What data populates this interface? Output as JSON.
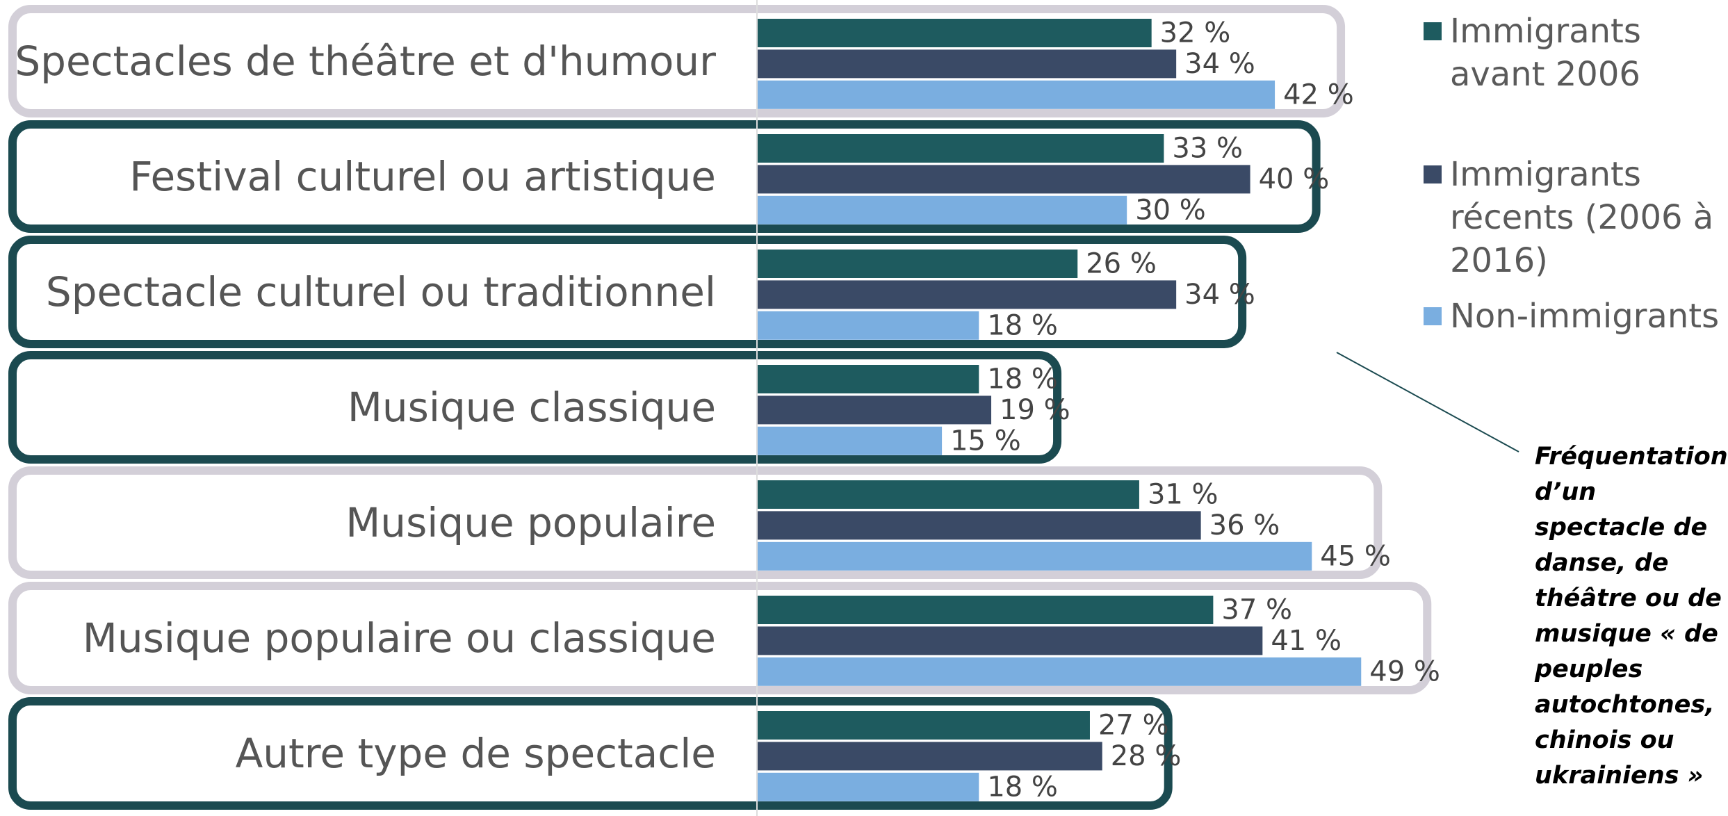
{
  "chart_data": {
    "type": "grouped-horizontal-bar",
    "categories": [
      "Spectacles de théâtre et d'humour",
      "Festival culturel ou artistique",
      "Spectacle culturel ou traditionnel",
      "Musique classique",
      "Musique populaire",
      "Musique populaire ou classique",
      "Autre type de spectacle"
    ],
    "category_box_colors": [
      "#d3cfd8",
      "#1b4a50",
      "#1b4a50",
      "#1b4a50",
      "#d3cfd8",
      "#d3cfd8",
      "#1b4a50"
    ],
    "series": [
      {
        "name": "Immigrants avant 2006",
        "color": "#1e5b5f",
        "values": [
          32,
          33,
          26,
          18,
          31,
          37,
          27
        ],
        "value_labels": [
          "32 %",
          "33 %",
          "26 %",
          "18 %",
          "31 %",
          "37 %",
          "27 %"
        ]
      },
      {
        "name": "Immigrants récents (2006 à 2016)",
        "color": "#3a4a66",
        "values": [
          34,
          40,
          34,
          19,
          36,
          41,
          28
        ],
        "value_labels": [
          "34 %",
          "40 %",
          "34 %",
          "19 %",
          "36 %",
          "41 %",
          "28 %"
        ]
      },
      {
        "name": "Non-immigrants",
        "color": "#7aaee0",
        "values": [
          42,
          30,
          18,
          15,
          45,
          49,
          18
        ],
        "value_labels": [
          "42 %",
          "30 %",
          "18 %",
          "15 %",
          "45 %",
          "49 %",
          "18 %"
        ]
      }
    ],
    "annotation": "Fréquentation d’un spectacle de danse, de théâtre ou de musique « de peuples autochtones, chinois ou ukrainiens »"
  }
}
